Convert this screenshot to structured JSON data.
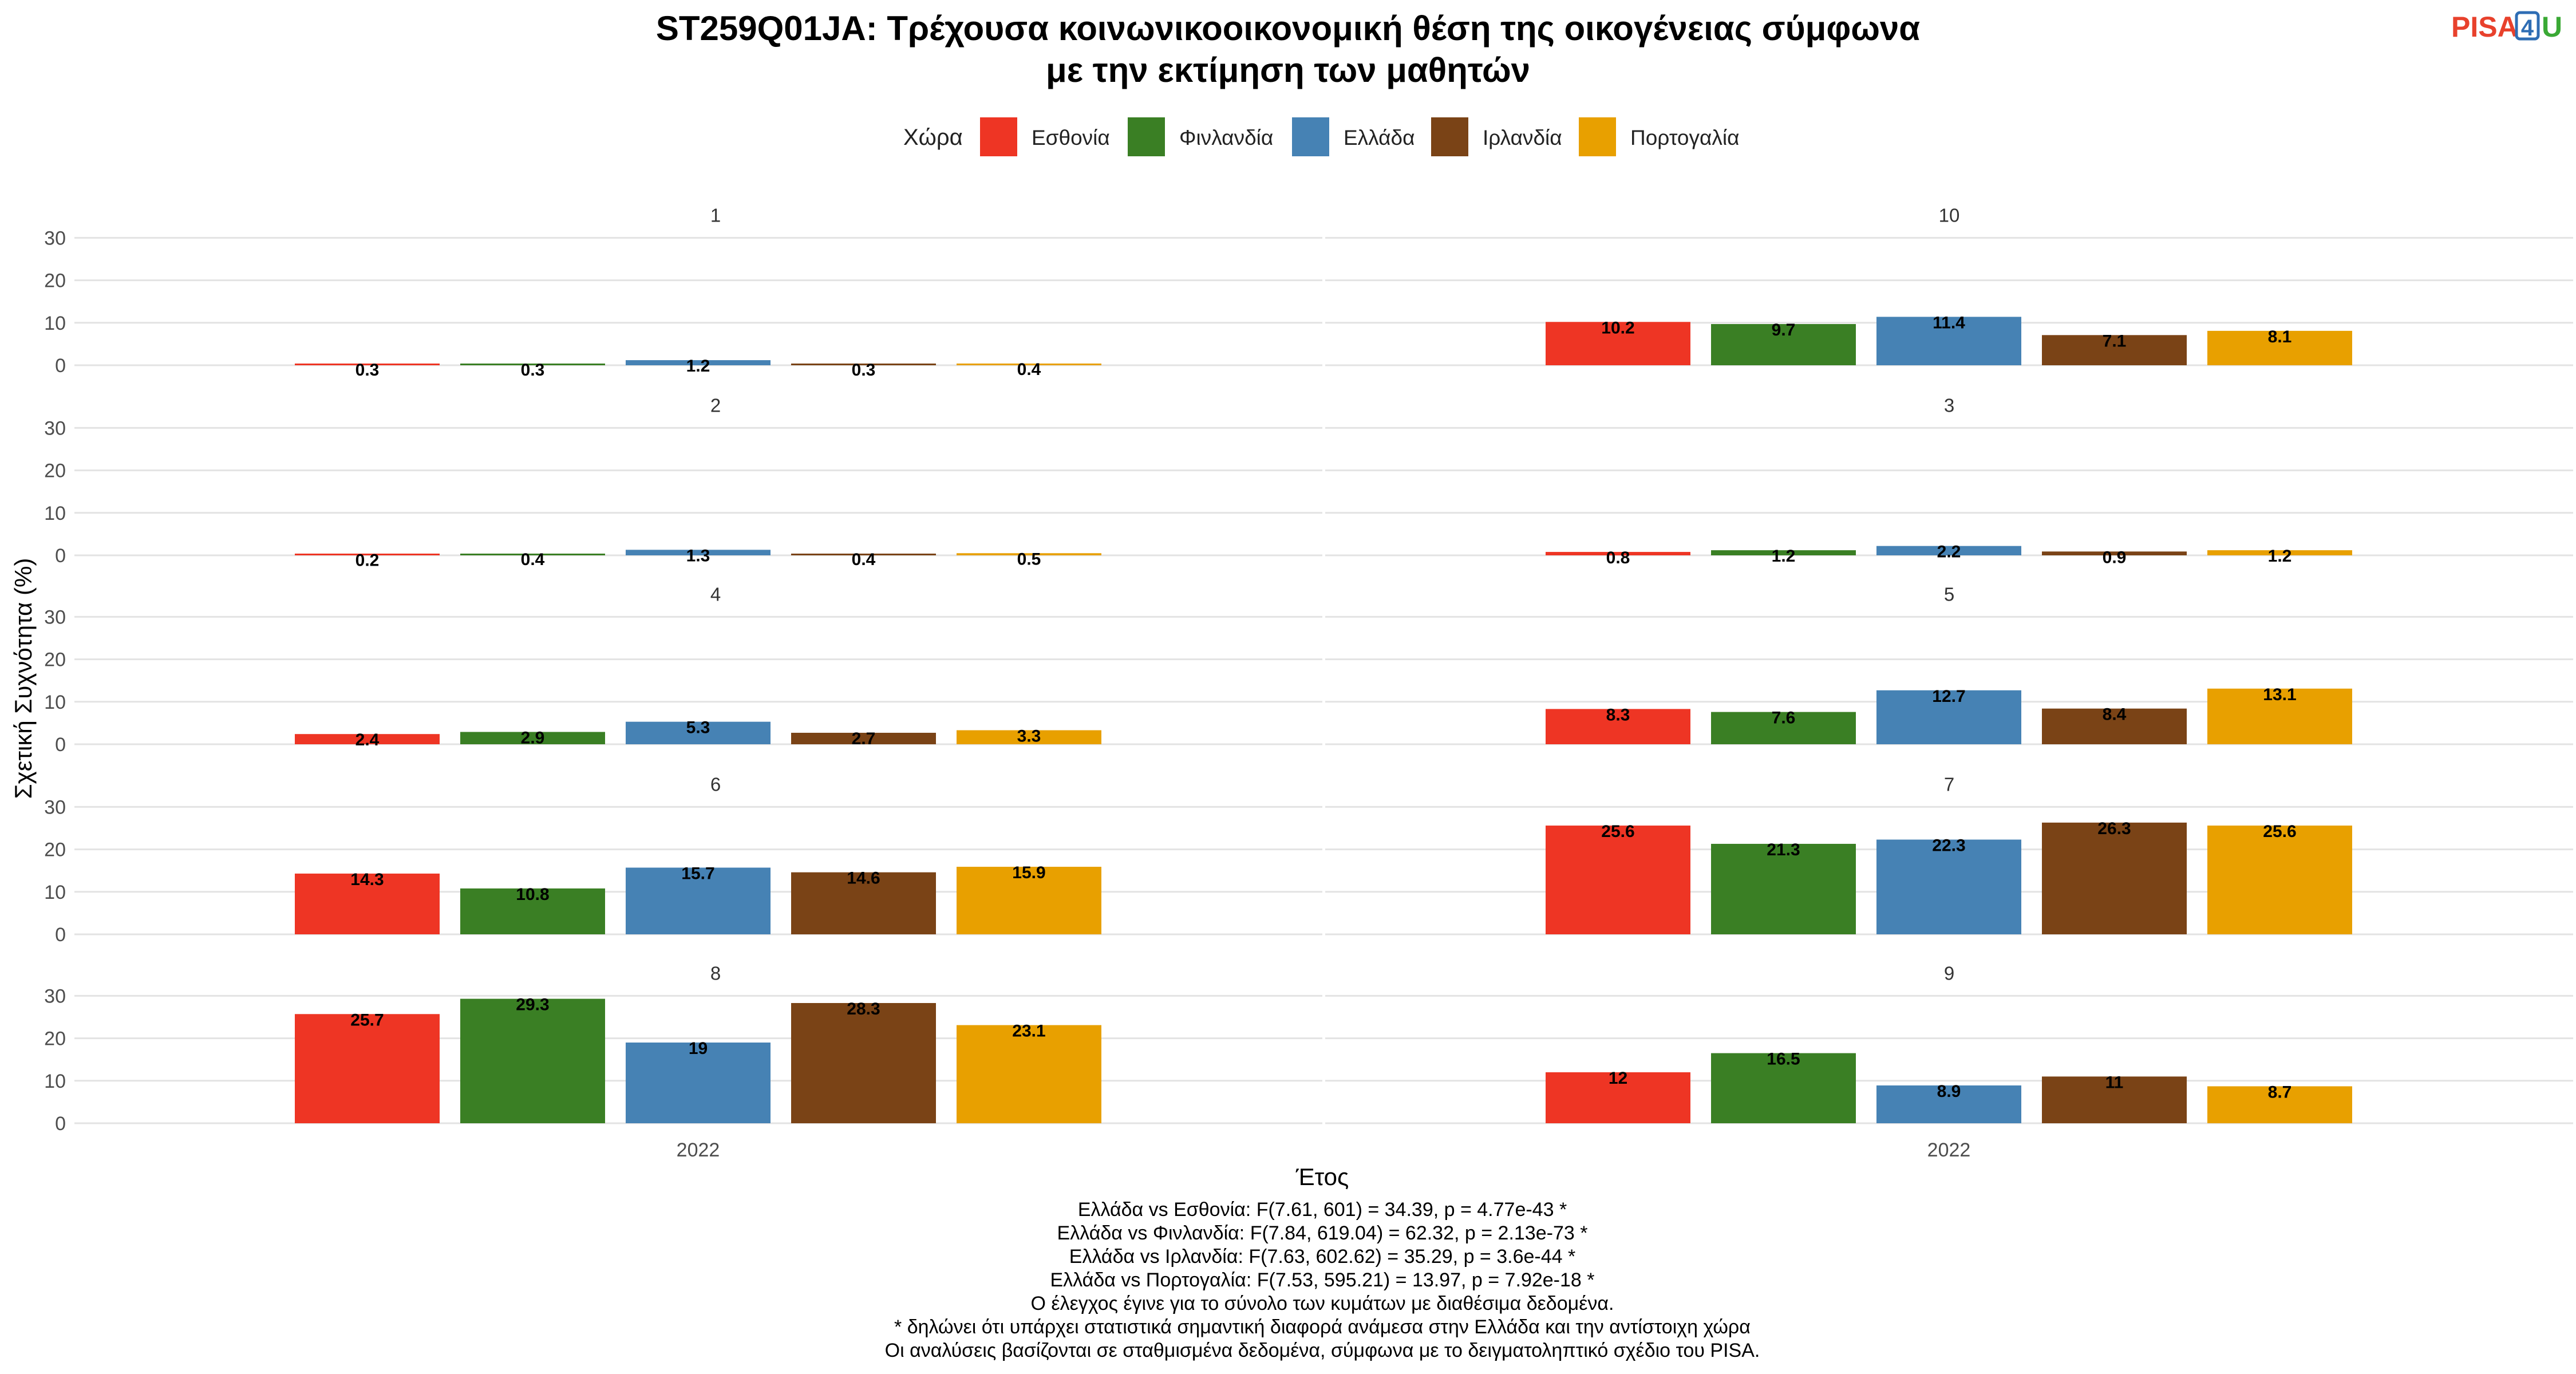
{
  "title_lines": [
    "ST259Q01JA: Τρέχουσα κοινωνικοοικονομική θέση της οικογένειας σύμφωνα",
    "με την εκτίμηση των μαθητών"
  ],
  "logo": {
    "text_main": "PISA",
    "text_box": "4",
    "text_tail": "U",
    "colors": {
      "main": "#E8412C",
      "box": "#2E6DB4",
      "tail": "#3AA935"
    }
  },
  "legend": {
    "title": "Χώρα",
    "placement": "top"
  },
  "caption_lines": [
    "Ελλάδα vs Εσθονία: F(7.61, 601) = 34.39, p = 4.77e-43 *",
    "Ελλάδα vs Φινλανδία: F(7.84, 619.04) = 62.32, p = 2.13e-73 *",
    "Ελλάδα vs Ιρλανδία: F(7.63, 602.62) = 35.29, p = 3.6e-44 *",
    "Ελλάδα vs Πορτογαλία: F(7.53, 595.21) = 13.97, p = 7.92e-18 *",
    "Ο έλεγχος έγινε για το σύνολο των κυμάτων με διαθέσιμα δεδομένα.",
    "* δηλώνει ότι υπάρχει στατιστικά σημαντική διαφορά ανάμεσα στην Ελλάδα και την αντίστοιχη χώρα",
    "Οι αναλύσεις βασίζονται σε σταθμισμένα δεδομένα, σύμφωνα με το δειγματοληπτικό σχέδιο του PISA."
  ],
  "chart_data": {
    "type": "bar",
    "faceted": true,
    "xlabel": "Έτος",
    "ylabel": "Σχετική Συχνότητα (%)",
    "ylim": [
      0,
      30
    ],
    "yticks": [
      0,
      10,
      20,
      30
    ],
    "grid": true,
    "x_category": "2022",
    "series": [
      {
        "name": "Εσθονία",
        "color": "#EE3524"
      },
      {
        "name": "Φινλανδία",
        "color": "#3A7F24"
      },
      {
        "name": "Ελλάδα",
        "color": "#4682B4"
      },
      {
        "name": "Ιρλανδία",
        "color": "#7A4316"
      },
      {
        "name": "Πορτογαλία",
        "color": "#E8A000"
      }
    ],
    "panels": [
      {
        "label": "1",
        "values": [
          0.3,
          0.3,
          1.2,
          0.3,
          0.4
        ],
        "value_labels": [
          "0.3",
          "0.3",
          "1.2",
          "0.3",
          "0.4"
        ]
      },
      {
        "label": "10",
        "values": [
          10.2,
          9.7,
          11.4,
          7.1,
          8.1
        ],
        "value_labels": [
          "10.2",
          "9.7",
          "11.4",
          "7.1",
          "8.1"
        ]
      },
      {
        "label": "2",
        "values": [
          0.2,
          0.4,
          1.3,
          0.4,
          0.5
        ],
        "value_labels": [
          "0.2",
          "0.4",
          "1.3",
          "0.4",
          "0.5"
        ]
      },
      {
        "label": "3",
        "values": [
          0.8,
          1.2,
          2.2,
          0.9,
          1.2
        ],
        "value_labels": [
          "0.8",
          "1.2",
          "2.2",
          "0.9",
          "1.2"
        ]
      },
      {
        "label": "4",
        "values": [
          2.4,
          2.9,
          5.3,
          2.7,
          3.3
        ],
        "value_labels": [
          "2.4",
          "2.9",
          "5.3",
          "2.7",
          "3.3"
        ]
      },
      {
        "label": "5",
        "values": [
          8.3,
          7.6,
          12.7,
          8.4,
          13.1
        ],
        "value_labels": [
          "8.3",
          "7.6",
          "12.7",
          "8.4",
          "13.1"
        ]
      },
      {
        "label": "6",
        "values": [
          14.3,
          10.8,
          15.7,
          14.6,
          15.9
        ],
        "value_labels": [
          "14.3",
          "10.8",
          "15.7",
          "14.6",
          "15.9"
        ]
      },
      {
        "label": "7",
        "values": [
          25.6,
          21.3,
          22.3,
          26.3,
          25.6
        ],
        "value_labels": [
          "25.6",
          "21.3",
          "22.3",
          "26.3",
          "25.6"
        ]
      },
      {
        "label": "8",
        "values": [
          25.7,
          29.3,
          19,
          28.3,
          23.1
        ],
        "value_labels": [
          "25.7",
          "29.3",
          "19",
          "28.3",
          "23.1"
        ]
      },
      {
        "label": "9",
        "values": [
          12,
          16.5,
          8.9,
          11,
          8.7
        ],
        "value_labels": [
          "12",
          "16.5",
          "8.9",
          "11",
          "8.7"
        ]
      }
    ]
  }
}
